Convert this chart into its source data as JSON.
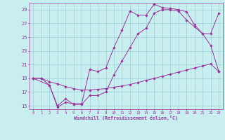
{
  "xlabel": "Windchill (Refroidissement éolien,°C)",
  "bg_color": "#c8eef0",
  "line_color": "#993399",
  "grid_color": "#9ecfda",
  "xlim": [
    -0.5,
    23.5
  ],
  "ylim": [
    14.5,
    30.0
  ],
  "yticks": [
    15,
    17,
    19,
    21,
    23,
    25,
    27,
    29
  ],
  "xticks": [
    0,
    1,
    2,
    3,
    4,
    5,
    6,
    7,
    8,
    9,
    10,
    11,
    12,
    13,
    14,
    15,
    16,
    17,
    18,
    19,
    20,
    21,
    22,
    23
  ],
  "curve_bottom_x": [
    0,
    1,
    2,
    3,
    4,
    5,
    6,
    7,
    8,
    9,
    10,
    11,
    12,
    13,
    14,
    15,
    16,
    17,
    18,
    19,
    20,
    21,
    22,
    23
  ],
  "curve_bottom_y": [
    19.0,
    19.0,
    18.5,
    18.2,
    17.8,
    17.5,
    17.3,
    17.3,
    17.4,
    17.5,
    17.7,
    17.9,
    18.1,
    18.4,
    18.7,
    19.0,
    19.3,
    19.6,
    19.9,
    20.2,
    20.5,
    20.8,
    21.1,
    20.0
  ],
  "curve_mid_x": [
    0,
    1,
    2,
    3,
    4,
    5,
    6,
    7,
    8,
    9,
    10,
    11,
    12,
    13,
    14,
    15,
    16,
    17,
    18,
    19,
    20,
    21,
    22,
    23
  ],
  "curve_mid_y": [
    19.0,
    19.0,
    18.0,
    15.0,
    16.0,
    15.2,
    15.2,
    16.5,
    16.5,
    17.0,
    19.5,
    21.5,
    23.5,
    25.5,
    26.3,
    28.5,
    29.0,
    29.0,
    28.8,
    27.5,
    26.5,
    25.5,
    23.8,
    20.0
  ],
  "curve_top_x": [
    0,
    2,
    3,
    4,
    5,
    6,
    7,
    8,
    9,
    10,
    11,
    12,
    13,
    14,
    15,
    16,
    17,
    18,
    19,
    20,
    21,
    22,
    23
  ],
  "curve_top_y": [
    19.0,
    18.0,
    14.8,
    15.5,
    15.3,
    15.3,
    20.3,
    20.0,
    20.5,
    23.5,
    26.0,
    28.8,
    28.2,
    28.2,
    29.8,
    29.3,
    29.2,
    29.0,
    28.7,
    26.8,
    25.5,
    25.5,
    28.5
  ]
}
